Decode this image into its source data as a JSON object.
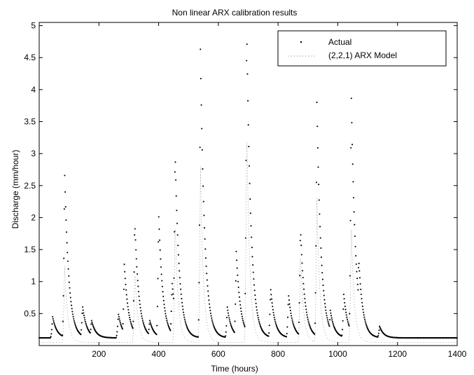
{
  "chart_data": {
    "type": "scatter",
    "title": "Non linear ARX calibration results",
    "xlabel": "Time (hours)",
    "ylabel": "Discharge (mm/hour)",
    "xlim": [
      0,
      1400
    ],
    "ylim": [
      0,
      5.05
    ],
    "xticks": [
      200,
      400,
      600,
      800,
      1000,
      1200,
      1400
    ],
    "yticks": [
      0.5,
      1,
      1.5,
      2,
      2.5,
      3,
      3.5,
      4,
      4.5,
      5
    ],
    "grid": false,
    "legend": {
      "position": "top-right"
    },
    "series": [
      {
        "name": "Actual",
        "marker": "dot",
        "color": "#000000",
        "peaks": [
          {
            "t": 45,
            "q": 0.45
          },
          {
            "t": 85,
            "q": 2.75
          },
          {
            "t": 145,
            "q": 0.62
          },
          {
            "t": 175,
            "q": 0.4
          },
          {
            "t": 265,
            "q": 0.5
          },
          {
            "t": 285,
            "q": 1.27
          },
          {
            "t": 320,
            "q": 1.95
          },
          {
            "t": 370,
            "q": 0.4
          },
          {
            "t": 400,
            "q": 2.08
          },
          {
            "t": 445,
            "q": 1.0
          },
          {
            "t": 455,
            "q": 3.07
          },
          {
            "t": 540,
            "q": 4.63
          },
          {
            "t": 630,
            "q": 0.6
          },
          {
            "t": 660,
            "q": 1.47
          },
          {
            "t": 695,
            "q": 5.05
          },
          {
            "t": 775,
            "q": 0.9
          },
          {
            "t": 835,
            "q": 0.8
          },
          {
            "t": 875,
            "q": 1.85
          },
          {
            "t": 930,
            "q": 3.8
          },
          {
            "t": 975,
            "q": 0.55
          },
          {
            "t": 1020,
            "q": 0.8
          },
          {
            "t": 1045,
            "q": 4.0
          },
          {
            "t": 1070,
            "q": 1.37
          },
          {
            "t": 1140,
            "q": 0.3
          },
          {
            "t": 1330,
            "q": 0.1
          }
        ]
      },
      {
        "name": "(2,2,1) ARX Model",
        "marker": "line",
        "color": "#000000",
        "peaks": [
          {
            "t": 85,
            "q": 1.3
          },
          {
            "t": 320,
            "q": 1.2
          },
          {
            "t": 455,
            "q": 2.0
          },
          {
            "t": 540,
            "q": 2.8
          },
          {
            "t": 695,
            "q": 3.5
          },
          {
            "t": 875,
            "q": 1.5
          },
          {
            "t": 930,
            "q": 2.3
          },
          {
            "t": 1045,
            "q": 1.9
          }
        ]
      }
    ]
  }
}
